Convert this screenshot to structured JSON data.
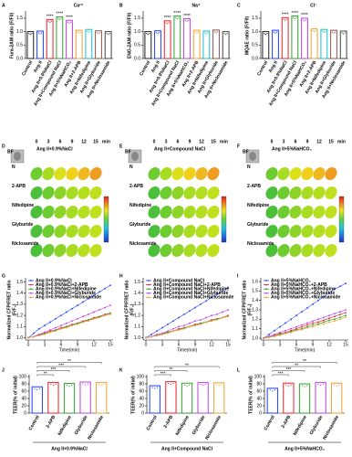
{
  "chart_data": [
    {
      "type": "bar",
      "panel": "A",
      "title": "Ca²⁺",
      "ylabel": [
        "Fura-2AM ratio (F/F0)"
      ],
      "categories": [
        "Control",
        "Ang II",
        "Ang II+0.9%NaCl",
        "Ang II+Compound NaCl",
        "Ang II+5%NaHCO₃",
        "Ang II+2-APB",
        "Ang II+Nifedipine",
        "Ang II+Glyburide",
        "Ang II+Niclosamide"
      ],
      "values": [
        1,
        1.02,
        1.45,
        1.55,
        1.42,
        1.05,
        1.08,
        1.03,
        1
      ],
      "colors": [
        "#222222",
        "#1f3fff",
        "#e8202a",
        "#2ca02c",
        "#c040e0",
        "#f0a030",
        "#17becf",
        "#8c564b",
        "#444444"
      ],
      "significance": [
        null,
        null,
        "****",
        "****",
        "****",
        null,
        null,
        null,
        null
      ],
      "ylim": [
        0,
        1.7
      ],
      "yticks": [
        {
          "value": 0,
          "label": "0.0"
        },
        0.5,
        {
          "value": 1,
          "label": "1.0"
        },
        1.5
      ]
    },
    {
      "type": "bar",
      "panel": "B",
      "title": "Na⁺",
      "ylabel": [
        "ENG-2AM ratio (F/F0)"
      ],
      "categories": [
        "Control",
        "Ang II",
        "Ang II+0.9%NaCl",
        "Ang II+Compound NaCl",
        "Ang II+5%NaHCO₃",
        "Ang II+2-APB",
        "Ang II+Nifedipine",
        "Ang II+Glyburide",
        "Ang II+Niclosamide"
      ],
      "values": [
        1,
        1.03,
        1.4,
        1.58,
        1.48,
        1.05,
        1.02,
        1.06,
        1
      ],
      "colors": [
        "#222222",
        "#1f3fff",
        "#e8202a",
        "#2ca02c",
        "#c040e0",
        "#f0a030",
        "#17becf",
        "#8c564b",
        "#444444"
      ],
      "significance": [
        null,
        null,
        "****",
        "****",
        "****",
        null,
        null,
        null,
        null
      ],
      "ylim": [
        0,
        1.7
      ],
      "yticks": [
        {
          "value": 0,
          "label": "0.0"
        },
        0.5,
        {
          "value": 1,
          "label": "1.0"
        },
        1.5
      ]
    },
    {
      "type": "bar",
      "panel": "C",
      "title": "Cl⁻",
      "ylabel": [
        "MQAE ratio (F/F0)"
      ],
      "categories": [
        "Control",
        "Ang II",
        "Ang II+0.9%NaCl",
        "Ang II+Compound NaCl",
        "Ang II+5%NaHCO₃",
        "Ang II+2-APB",
        "Ang II+Nifedipine",
        "Ang II+Glyburide",
        "Ang II+Niclosamide"
      ],
      "values": [
        1,
        1.05,
        1.52,
        1.58,
        1.5,
        1.1,
        1.08,
        1.05,
        1.02
      ],
      "colors": [
        "#222222",
        "#1f3fff",
        "#e8202a",
        "#2ca02c",
        "#c040e0",
        "#f0a030",
        "#17becf",
        "#8c564b",
        "#444444"
      ],
      "significance": [
        null,
        null,
        "****",
        "****",
        "****",
        null,
        null,
        null,
        null
      ],
      "ylim": [
        0,
        1.7
      ],
      "yticks": [
        {
          "value": 0,
          "label": "0.0"
        },
        0.5,
        {
          "value": 1,
          "label": "1.0"
        },
        1.5
      ]
    },
    {
      "type": "line",
      "panel": "G",
      "ylabel": [
        "Normalized CFP/FRET ratio",
        "(F/F₀)"
      ],
      "xlabel": "Time(min)",
      "x": [
        0,
        1,
        2,
        3,
        4,
        5,
        6,
        7,
        8,
        9,
        10,
        11,
        12,
        13,
        14,
        15
      ],
      "xlim": [
        -0.5,
        15.5
      ],
      "xticks": [
        0,
        3,
        6,
        9,
        12,
        15
      ],
      "ylim": [
        0.98,
        1.52
      ],
      "yticks": [
        {
          "value": 1,
          "label": "1.0"
        },
        1.1,
        1.2,
        1.3,
        1.4,
        1.5
      ],
      "series": [
        {
          "name": "Ang II+0.9%NaCl",
          "color": "#1f3fff",
          "values": [
            1,
            1.04,
            1.08,
            1.11,
            1.14,
            1.17,
            1.2,
            1.23,
            1.26,
            1.29,
            1.32,
            1.35,
            1.38,
            1.41,
            1.44,
            1.47
          ]
        },
        {
          "name": "Ang II+0.9%NaCl+2-APB",
          "color": "#e8202a",
          "values": [
            1,
            1.01,
            1.03,
            1.04,
            1.06,
            1.07,
            1.09,
            1.1,
            1.12,
            1.13,
            1.15,
            1.16,
            1.18,
            1.19,
            1.21,
            1.22
          ]
        },
        {
          "name": "Ang II+0.9%NaCl+Nifedipine",
          "color": "#2ca02c",
          "values": [
            1,
            1.01,
            1.02,
            1.04,
            1.05,
            1.07,
            1.08,
            1.1,
            1.11,
            1.13,
            1.14,
            1.16,
            1.17,
            1.19,
            1.2,
            1.22
          ]
        },
        {
          "name": "Ang II+0.9%NaCl+Glyburide",
          "color": "#c040e0",
          "values": [
            1,
            1.01,
            1.03,
            1.05,
            1.07,
            1.09,
            1.11,
            1.13,
            1.15,
            1.17,
            1.19,
            1.21,
            1.23,
            1.25,
            1.27,
            1.29
          ]
        },
        {
          "name": "Ang II+0.9%NaCl+Niclosamide",
          "color": "#f0a030",
          "values": [
            1,
            1.01,
            1.02,
            1.03,
            1.05,
            1.06,
            1.08,
            1.09,
            1.11,
            1.12,
            1.14,
            1.15,
            1.17,
            1.18,
            1.2,
            1.21
          ]
        }
      ]
    },
    {
      "type": "line",
      "panel": "H",
      "ylabel": [
        "Normalized CFP/FRET ratio",
        "(F/F₀)"
      ],
      "xlabel": "Time(min)",
      "x": [
        0,
        1,
        2,
        3,
        4,
        5,
        6,
        7,
        8,
        9,
        10,
        11,
        12,
        13,
        14,
        15
      ],
      "xlim": [
        -0.5,
        15.5
      ],
      "xticks": [
        0,
        3,
        6,
        9,
        12,
        15
      ],
      "ylim": [
        0.98,
        1.52
      ],
      "yticks": [
        {
          "value": 1,
          "label": "1.0"
        },
        1.1,
        1.2,
        1.3,
        1.4,
        1.5
      ],
      "series": [
        {
          "name": "Ang II+Compound NaCl",
          "color": "#1f3fff",
          "values": [
            1,
            1.03,
            1.06,
            1.09,
            1.12,
            1.15,
            1.18,
            1.21,
            1.24,
            1.27,
            1.3,
            1.33,
            1.36,
            1.39,
            1.42,
            1.45
          ]
        },
        {
          "name": "Ang II+Compound NaCl+2-APB",
          "color": "#e8202a",
          "values": [
            1,
            1.01,
            1.02,
            1.04,
            1.05,
            1.06,
            1.08,
            1.09,
            1.1,
            1.12,
            1.13,
            1.14,
            1.16,
            1.17,
            1.18,
            1.2
          ]
        },
        {
          "name": "Ang II+Compound NaCl+Nifedipine",
          "color": "#2ca02c",
          "values": [
            1,
            1.01,
            1.02,
            1.03,
            1.05,
            1.06,
            1.07,
            1.09,
            1.1,
            1.11,
            1.13,
            1.14,
            1.15,
            1.17,
            1.18,
            1.19
          ]
        },
        {
          "name": "Ang II+Compound NaCl+Glyburide",
          "color": "#c040e0",
          "values": [
            1,
            1.01,
            1.03,
            1.04,
            1.06,
            1.08,
            1.1,
            1.11,
            1.13,
            1.15,
            1.16,
            1.18,
            1.2,
            1.21,
            1.23,
            1.25
          ]
        },
        {
          "name": "Ang II+Compound NaCl+Niclosamide",
          "color": "#f0a030",
          "values": [
            1,
            1.01,
            1.02,
            1.03,
            1.04,
            1.06,
            1.07,
            1.08,
            1.1,
            1.11,
            1.12,
            1.14,
            1.15,
            1.16,
            1.18,
            1.19
          ]
        }
      ]
    },
    {
      "type": "line",
      "panel": "I",
      "ylabel": [
        "Normalized CFP/FRET ratio",
        "(F/F₀)"
      ],
      "xlabel": "Time(min)",
      "x": [
        0,
        1,
        2,
        3,
        4,
        5,
        6,
        7,
        8,
        9,
        10,
        11,
        12,
        13,
        14,
        15
      ],
      "xlim": [
        -0.5,
        15.5
      ],
      "xticks": [
        0,
        3,
        6,
        9,
        12,
        15
      ],
      "ylim": [
        0.98,
        1.62
      ],
      "yticks": [
        {
          "value": 1,
          "label": "1.0"
        },
        1.1,
        1.2,
        1.3,
        1.4,
        1.5,
        1.6
      ],
      "series": [
        {
          "name": "Ang II+5%NaHCO₃",
          "color": "#1f3fff",
          "values": [
            1,
            1.04,
            1.08,
            1.12,
            1.16,
            1.2,
            1.24,
            1.28,
            1.32,
            1.36,
            1.4,
            1.44,
            1.48,
            1.52,
            1.55,
            1.58
          ]
        },
        {
          "name": "Ang II+5%NaHCO₃+2-APB",
          "color": "#e8202a",
          "values": [
            1,
            1.01,
            1.03,
            1.05,
            1.06,
            1.08,
            1.1,
            1.12,
            1.14,
            1.16,
            1.17,
            1.19,
            1.21,
            1.23,
            1.25,
            1.27
          ]
        },
        {
          "name": "Ang II+5%NaHCO₃+Nifedipine",
          "color": "#2ca02c",
          "values": [
            1,
            1.01,
            1.02,
            1.04,
            1.05,
            1.07,
            1.09,
            1.1,
            1.12,
            1.14,
            1.15,
            1.17,
            1.19,
            1.2,
            1.22,
            1.24
          ]
        },
        {
          "name": "Ang II+5%NaHCO₃+Glyburide",
          "color": "#c040e0",
          "values": [
            1,
            1.02,
            1.04,
            1.06,
            1.08,
            1.1,
            1.12,
            1.14,
            1.16,
            1.18,
            1.2,
            1.22,
            1.24,
            1.26,
            1.28,
            1.3
          ]
        },
        {
          "name": "Ang II+5%NaHCO₃+Niclosamide",
          "color": "#f0a030",
          "values": [
            1,
            1.01,
            1.02,
            1.03,
            1.05,
            1.06,
            1.08,
            1.09,
            1.11,
            1.12,
            1.14,
            1.15,
            1.17,
            1.18,
            1.2,
            1.22
          ]
        }
      ]
    },
    {
      "type": "bar",
      "panel": "J",
      "ylabel": [
        "TEER(% of initial)"
      ],
      "xlabel": "Ang II+0.9%NaCl",
      "bracket": true,
      "categories": [
        "Control",
        "2-APB",
        "Nifedipine",
        "Glyburide",
        "Niclosamide"
      ],
      "values": [
        72,
        84,
        81,
        85,
        84
      ],
      "colors": [
        "#1f3fff",
        "#e8202a",
        "#2ca02c",
        "#c040e0",
        "#f0a030"
      ],
      "significance": [
        null,
        "**",
        "***",
        "***",
        "**"
      ],
      "ylim": [
        0,
        100
      ],
      "yticks": [
        0,
        20,
        40,
        60,
        80,
        100
      ]
    },
    {
      "type": "bar",
      "panel": "K",
      "ylabel": [
        "TEER(% of initial)"
      ],
      "xlabel": "Ang II+Compound NaCl",
      "bracket": true,
      "categories": [
        "Control",
        "2-APB",
        "Nifedipine",
        "Glyburide",
        "Niclosamide"
      ],
      "values": [
        75,
        86,
        82,
        84,
        83
      ],
      "colors": [
        "#1f3fff",
        "#e8202a",
        "#2ca02c",
        "#c040e0",
        "#f0a030"
      ],
      "significance": [
        null,
        "***",
        "**",
        null,
        "**"
      ],
      "ylim": [
        0,
        100
      ],
      "yticks": [
        0,
        20,
        40,
        60,
        80,
        100
      ]
    },
    {
      "type": "bar",
      "panel": "L",
      "ylabel": [
        "TEER(% of initial)"
      ],
      "xlabel": "Ang II+5%NaHCO₃",
      "bracket": true,
      "categories": [
        "Control",
        "2-APB",
        "Nifedipine",
        "Glyburide",
        "Niclosamide"
      ],
      "values": [
        68,
        82,
        80,
        84,
        82
      ],
      "colors": [
        "#1f3fff",
        "#e8202a",
        "#2ca02c",
        "#c040e0",
        "#f0a030"
      ],
      "significance": [
        null,
        "***",
        "***",
        "**",
        "**"
      ],
      "ylim": [
        0,
        100
      ],
      "yticks": [
        0,
        20,
        40,
        60,
        80,
        100
      ]
    }
  ],
  "image_panels": [
    {
      "panel": "D",
      "title": "Ang II+0.9%NaCl",
      "bf": "BF",
      "times": [
        0,
        3,
        6,
        9,
        12,
        15
      ],
      "time_unit": "min",
      "rows": [
        "N",
        "2-APB",
        "Nifedipine",
        "Glyburide",
        "Niclosamide"
      ]
    },
    {
      "panel": "E",
      "title": "Ang II+Compound NaCl",
      "bf": "BF",
      "times": [
        0,
        3,
        6,
        9,
        12,
        15
      ],
      "time_unit": "min",
      "rows": [
        "N",
        "2-APB",
        "Nifedipine",
        "Glyburide",
        "Niclosamide"
      ]
    },
    {
      "panel": "F",
      "title": "Ang II+5%NaHCO₃",
      "bf": "BF",
      "times": [
        0,
        3,
        6,
        9,
        12,
        15
      ],
      "time_unit": "min",
      "rows": [
        "N",
        "2-APB",
        "Nifedipine",
        "Glyburide",
        "Niclosamide"
      ]
    }
  ]
}
